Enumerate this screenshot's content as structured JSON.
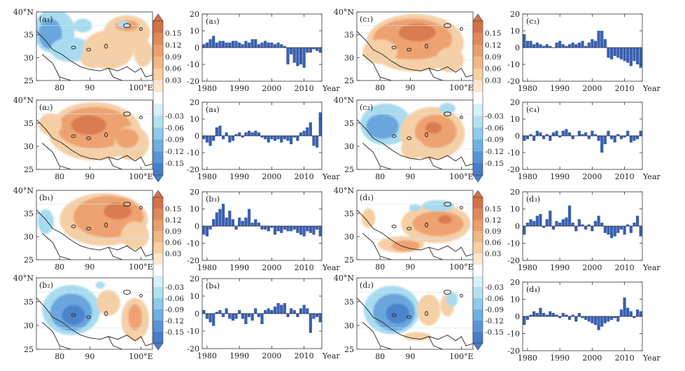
{
  "colors": {
    "bar": "#3a5fb0",
    "warm_strong": "#d97b4f",
    "warm_mid": "#eea271",
    "warm_light": "#f5cfa6",
    "cool_light": "#a8dbef",
    "cool_mid": "#6aa6dd",
    "cool_strong": "#4e82cc",
    "border": "#222222"
  },
  "map_axes": {
    "x_ticks": [
      "80",
      "90",
      "100°E"
    ],
    "y_ticks": [
      "40°N",
      "35",
      "30",
      "25"
    ]
  },
  "colorbar": {
    "labels": [
      "0.15",
      "0.12",
      "0.09",
      "0.06",
      "0.03",
      "-0.03",
      "-0.06",
      "-0.09",
      "-0.12",
      "-0.15"
    ]
  },
  "maps": [
    {
      "label": "(a₁)",
      "pattern": "a1"
    },
    {
      "label": "(a₂)",
      "pattern": "a2"
    },
    {
      "label": "(b₁)",
      "pattern": "b1"
    },
    {
      "label": "(b₂)",
      "pattern": "b2"
    },
    {
      "label": "(c₁)",
      "pattern": "c1"
    },
    {
      "label": "(c₂)",
      "pattern": "c2"
    },
    {
      "label": "(d₁)",
      "pattern": "d1"
    },
    {
      "label": "(d₂)",
      "pattern": "d2"
    }
  ],
  "chart_data": [
    {
      "type": "bar",
      "label": "(a₃)",
      "xlabel": "Year",
      "x_ticks": [
        1980,
        1990,
        2000,
        2010
      ],
      "ylim": [
        -20,
        20
      ],
      "y_ticks": [
        -20,
        -10,
        0,
        10,
        20
      ],
      "years_start": 1979,
      "values": [
        2,
        3,
        5,
        7,
        3,
        4,
        4,
        3,
        3,
        4,
        4,
        3,
        2,
        4,
        3,
        5,
        5,
        2,
        3,
        4,
        3,
        3,
        2,
        3,
        2,
        1,
        -10,
        -4,
        -9,
        -11,
        -10,
        -12,
        -3,
        -3,
        -1,
        -2,
        -3
      ]
    },
    {
      "type": "bar",
      "label": "(a₄)",
      "xlabel": "Year",
      "x_ticks": [
        1980,
        1990,
        2000,
        2010
      ],
      "ylim": [
        -20,
        20
      ],
      "y_ticks": [
        -20,
        -10,
        0,
        10,
        20
      ],
      "years_start": 1979,
      "values": [
        -2,
        -4,
        -6,
        -3,
        5,
        6,
        -2,
        2,
        -4,
        -3,
        1,
        2,
        -1,
        2,
        3,
        2,
        3,
        2,
        -1,
        -2,
        -4,
        -2,
        -3,
        -2,
        -4,
        -2,
        -3,
        -5,
        -1,
        -3,
        2,
        3,
        5,
        8,
        -6,
        -7,
        14
      ]
    },
    {
      "type": "bar",
      "label": "(b₃)",
      "xlabel": "Year",
      "x_ticks": [
        1980,
        1990,
        2000,
        2010
      ],
      "ylim": [
        -20,
        20
      ],
      "y_ticks": [
        -20,
        -10,
        0,
        10,
        20
      ],
      "years_start": 1979,
      "values": [
        -5,
        -6,
        -2,
        4,
        8,
        10,
        13,
        5,
        9,
        4,
        -2,
        5,
        3,
        5,
        10,
        2,
        4,
        2,
        -2,
        -2,
        -3,
        -1,
        -5,
        -3,
        -4,
        -2,
        -3,
        -3,
        -2,
        -4,
        -5,
        -6,
        -3,
        -4,
        -5,
        -2,
        -6
      ]
    },
    {
      "type": "bar",
      "label": "(b₄)",
      "xlabel": "Year",
      "x_ticks": [
        1980,
        1990,
        2000,
        2010
      ],
      "ylim": [
        -20,
        20
      ],
      "y_ticks": [
        -20,
        -10,
        0,
        10,
        20
      ],
      "years_start": 1979,
      "values": [
        2,
        -3,
        -5,
        -7,
        1,
        2,
        -2,
        3,
        -3,
        -4,
        -3,
        2,
        -3,
        -6,
        -2,
        -4,
        3,
        -2,
        -6,
        2,
        3,
        2,
        4,
        6,
        5,
        6,
        -2,
        3,
        2,
        -2,
        3,
        5,
        3,
        -11,
        -3,
        -2,
        -5
      ]
    },
    {
      "type": "bar",
      "label": "(c₃)",
      "xlabel": "Year",
      "x_ticks": [
        1980,
        1990,
        2000,
        2010
      ],
      "ylim": [
        -20,
        20
      ],
      "y_ticks": [
        -20,
        -10,
        0,
        10,
        20
      ],
      "years_start": 1979,
      "values": [
        8,
        4,
        4,
        2,
        3,
        2,
        1,
        2,
        1,
        0,
        3,
        4,
        2,
        1,
        2,
        3,
        2,
        3,
        4,
        1,
        3,
        5,
        4,
        10,
        10,
        5,
        -6,
        -7,
        -5,
        -6,
        -7,
        -8,
        -9,
        -11,
        -8,
        -10,
        -12
      ]
    },
    {
      "type": "bar",
      "label": "(c₄)",
      "xlabel": "Year",
      "x_ticks": [
        1980,
        1990,
        2000,
        2010
      ],
      "ylim": [
        -20,
        20
      ],
      "y_ticks": [
        -20,
        -10,
        0,
        10,
        20
      ],
      "years_start": 1979,
      "values": [
        -3,
        -2,
        1,
        -3,
        3,
        2,
        -2,
        1,
        -3,
        2,
        3,
        -1,
        3,
        4,
        2,
        -2,
        0,
        3,
        1,
        2,
        -2,
        3,
        1,
        -3,
        -10,
        -5,
        3,
        -2,
        -4,
        1,
        -2,
        -1,
        3,
        -4,
        -3,
        -2,
        3
      ]
    },
    {
      "type": "bar",
      "label": "(d₃)",
      "xlabel": "Year",
      "x_ticks": [
        1980,
        1990,
        2000,
        2010
      ],
      "ylim": [
        -20,
        20
      ],
      "y_ticks": [
        -20,
        -10,
        0,
        10,
        20
      ],
      "years_start": 1979,
      "values": [
        -5,
        2,
        4,
        3,
        6,
        7,
        -1,
        4,
        9,
        -2,
        3,
        2,
        4,
        5,
        12,
        2,
        -3,
        4,
        1,
        -2,
        1,
        -3,
        3,
        6,
        2,
        -4,
        -5,
        -7,
        -6,
        -4,
        -2,
        -5,
        1,
        -4,
        2,
        6,
        -6
      ]
    },
    {
      "type": "bar",
      "label": "(d₄)",
      "xlabel": "Year",
      "x_ticks": [
        1980,
        1990,
        2000,
        2010
      ],
      "ylim": [
        -20,
        20
      ],
      "y_ticks": [
        -20,
        -10,
        0,
        10,
        20
      ],
      "years_start": 1979,
      "values": [
        -5,
        -2,
        1,
        3,
        2,
        5,
        2,
        1,
        3,
        2,
        1,
        -1,
        2,
        1,
        -2,
        1,
        -3,
        2,
        -1,
        -2,
        -3,
        -4,
        -5,
        -8,
        -6,
        -4,
        -3,
        -2,
        -1,
        -3,
        4,
        11,
        5,
        3,
        -1,
        4,
        3
      ]
    }
  ]
}
